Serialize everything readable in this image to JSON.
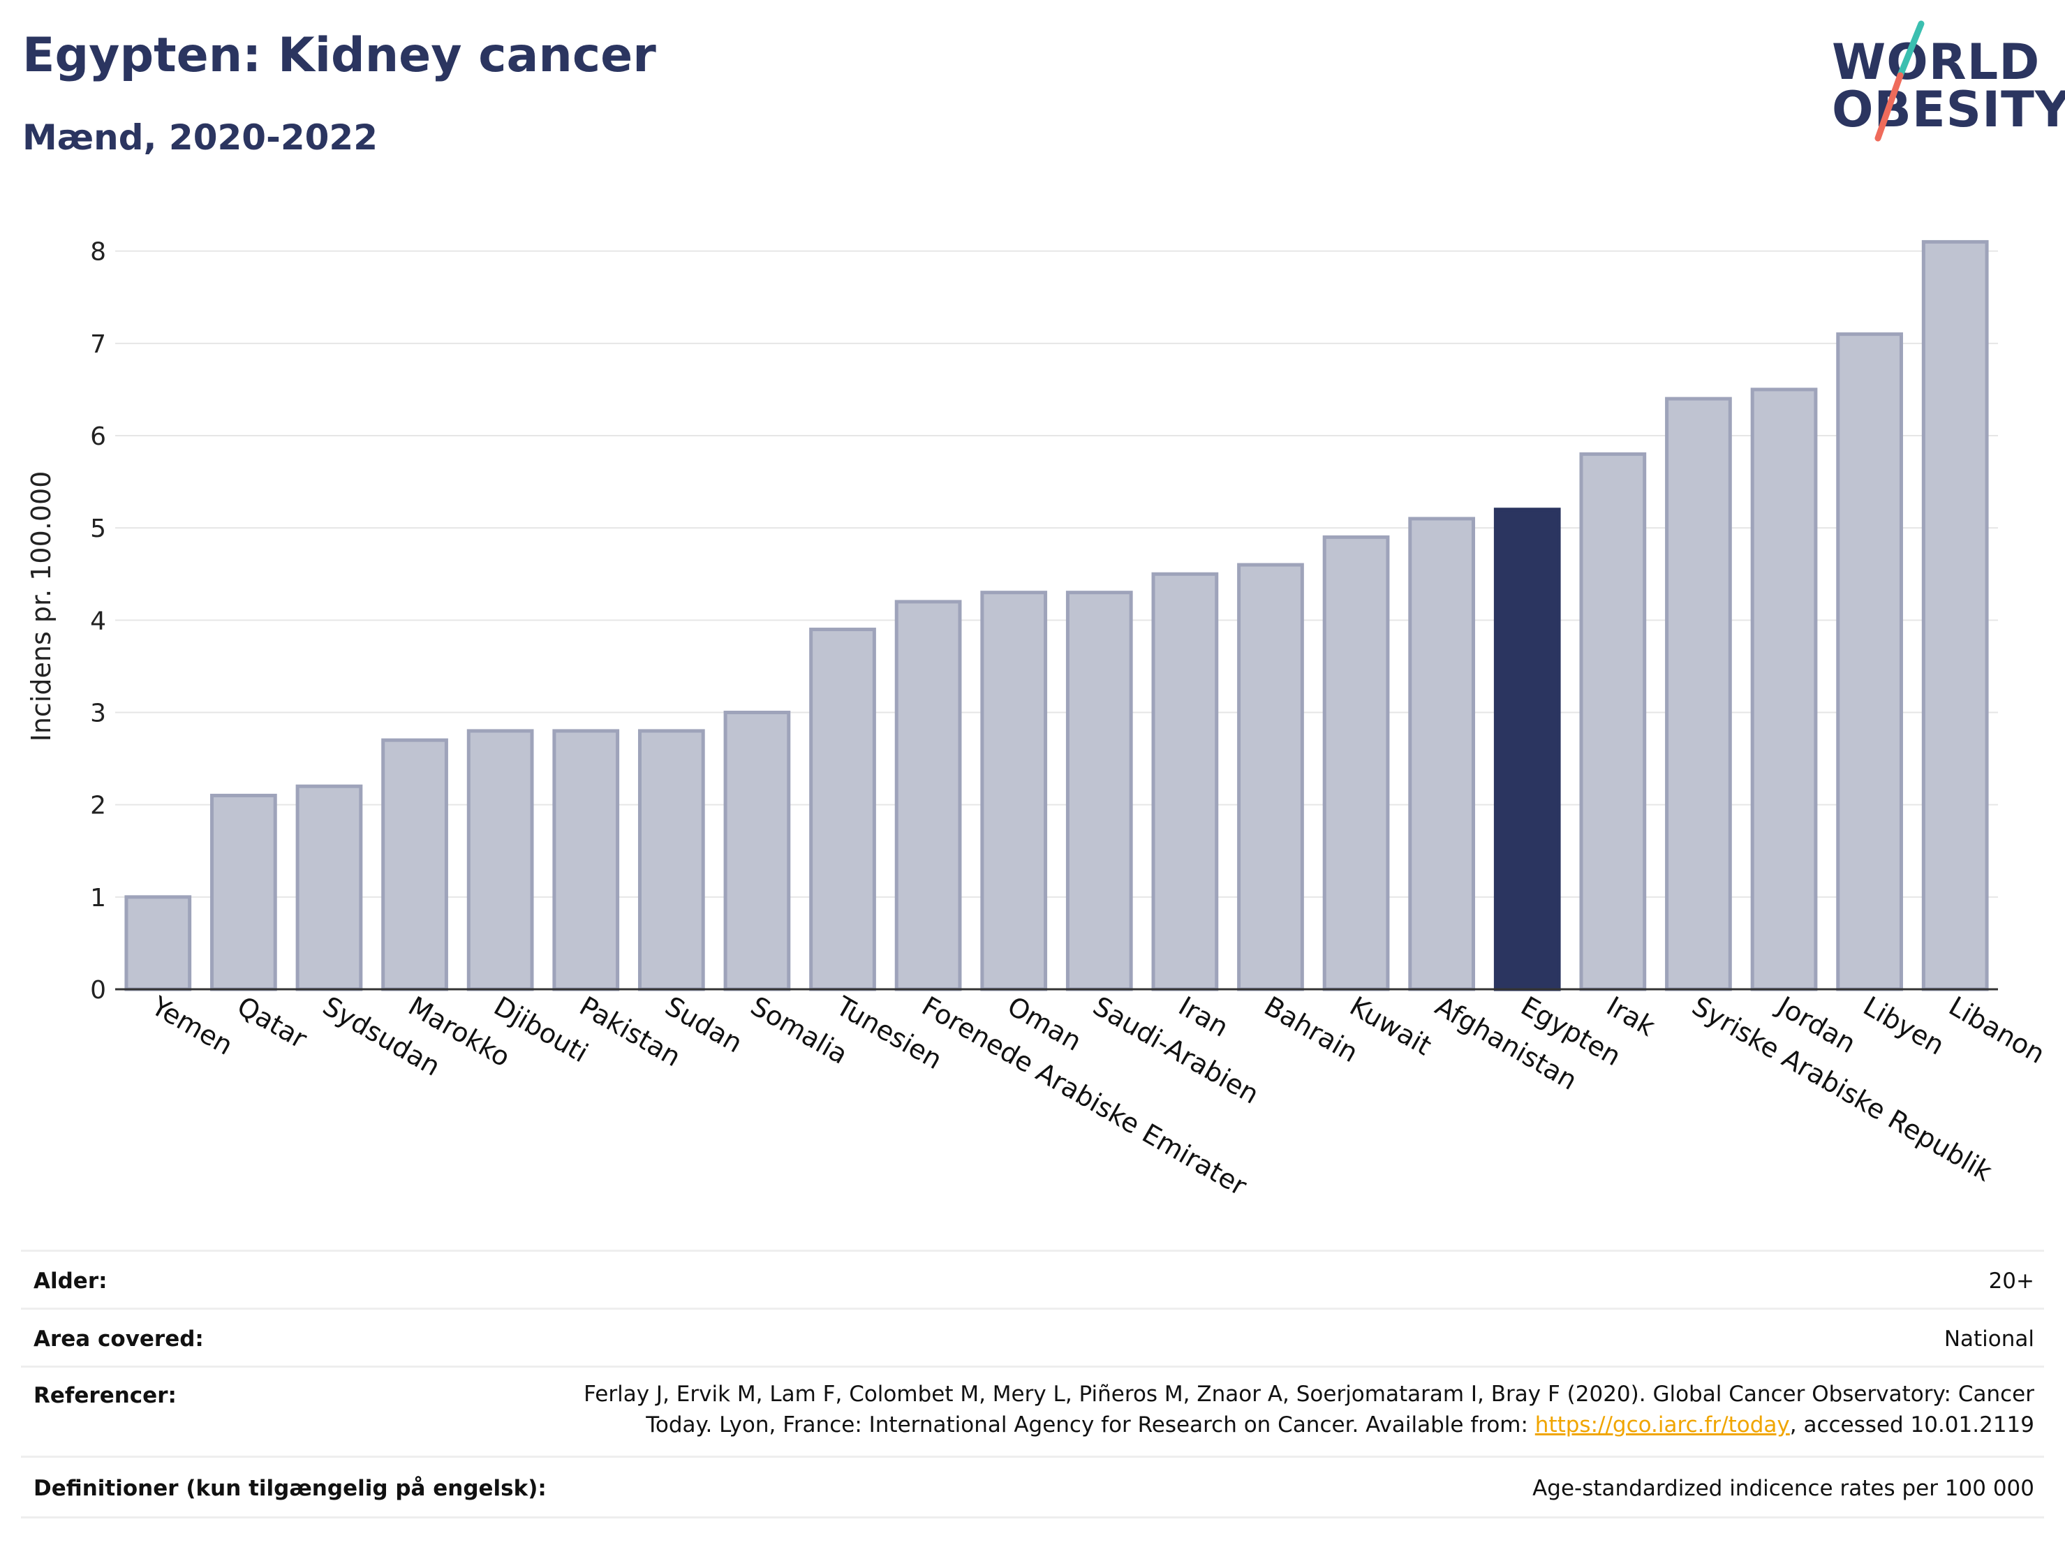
{
  "header": {
    "title": "Egypten: Kidney cancer",
    "subtitle": "Mænd, 2020-2022"
  },
  "logo": {
    "line1": "WORLD",
    "line2": "OBESITY",
    "colors": {
      "text": "#2b3560",
      "slash_top": "#3bbfb0",
      "slash_bottom": "#ef6b5b"
    }
  },
  "chart_data": {
    "type": "bar",
    "title": "Egypten: Kidney cancer",
    "subtitle": "Mænd, 2020-2022",
    "xlabel": "",
    "ylabel": "Incidens pr. 100.000",
    "ylim": [
      0,
      8.3
    ],
    "yticks": [
      0,
      1,
      2,
      3,
      4,
      5,
      6,
      7,
      8
    ],
    "grid": true,
    "legend": "none",
    "highlight": "Egypten",
    "colors": {
      "bar": "#bfc3d1",
      "bar_border": "#9ea3ba",
      "highlight": "#2b3560",
      "grid": "#e6e6e6"
    },
    "categories": [
      "Yemen",
      "Qatar",
      "Sydsudan",
      "Marokko",
      "Djibouti",
      "Pakistan",
      "Sudan",
      "Somalia",
      "Tunesien",
      "Forenede Arabiske Emirater",
      "Oman",
      "Saudi-Arabien",
      "Iran",
      "Bahrain",
      "Kuwait",
      "Afghanistan",
      "Egypten",
      "Irak",
      "Syriske Arabiske Republik",
      "Jordan",
      "Libyen",
      "Libanon"
    ],
    "values": [
      1.0,
      2.1,
      2.2,
      2.7,
      2.8,
      2.8,
      2.8,
      3.0,
      3.9,
      4.2,
      4.3,
      4.3,
      4.5,
      4.6,
      4.9,
      5.1,
      5.2,
      5.8,
      6.4,
      6.5,
      7.1,
      8.1
    ]
  },
  "meta": {
    "age_label": "Alder:",
    "age_value": "20+",
    "area_label": "Area covered:",
    "area_value": "National",
    "ref_label": "Referencer:",
    "ref_line1": "Ferlay J, Ervik M, Lam F, Colombet M, Mery L, Piñeros M, Znaor A, Soerjomataram I, Bray F (2020). Global Cancer Observatory: Cancer",
    "ref_line2_pre": "Today. Lyon, France: International Agency for Research on Cancer. Available from: ",
    "ref_link": "https://gco.iarc.fr/today",
    "ref_line2_post": ", accessed 10.01.2119",
    "def_label": "Definitioner (kun tilgængelig på engelsk):",
    "def_value": "Age-standardized indicence rates per 100 000"
  }
}
